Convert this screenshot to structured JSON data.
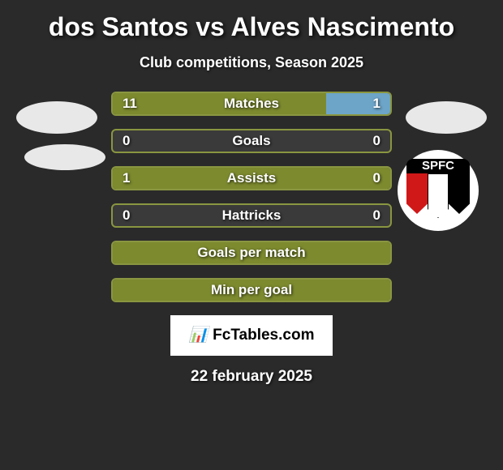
{
  "title": "dos Santos vs Alves Nascimento",
  "subtitle": "Club competitions, Season 2025",
  "footer_logo": "FcTables.com",
  "footer_date": "22 february 2025",
  "club_logo_text": "SPFC",
  "styling": {
    "background_color": "#2a2a2a",
    "text_color": "#ffffff",
    "title_fontsize": 32,
    "subtitle_fontsize": 18,
    "label_fontsize": 17,
    "player_icon_color": "#e8e8e8",
    "club_logo_bg": "#ffffff",
    "club_shield_red": "#d01818",
    "club_shield_black": "#000000",
    "club_shield_white": "#ffffff",
    "footer_logo_bg": "#ffffff",
    "footer_logo_text_color": "#000000"
  },
  "stats": [
    {
      "label": "Matches",
      "left_value": "11",
      "right_value": "1",
      "left_fill_pct": 77,
      "right_fill_pct": 23,
      "left_color": "#7d8a2e",
      "right_color": "#6da5c9",
      "border_color": "#8a9640"
    },
    {
      "label": "Goals",
      "left_value": "0",
      "right_value": "0",
      "left_fill_pct": 0,
      "right_fill_pct": 0,
      "left_color": "#7d8a2e",
      "right_color": "#6da5c9",
      "border_color": "#8a9640"
    },
    {
      "label": "Assists",
      "left_value": "1",
      "right_value": "0",
      "left_fill_pct": 100,
      "right_fill_pct": 0,
      "left_color": "#7d8a2e",
      "right_color": "#6da5c9",
      "border_color": "#8a9640"
    },
    {
      "label": "Hattricks",
      "left_value": "0",
      "right_value": "0",
      "left_fill_pct": 0,
      "right_fill_pct": 0,
      "left_color": "#7d8a2e",
      "right_color": "#6da5c9",
      "border_color": "#8a9640"
    },
    {
      "label": "Goals per match",
      "left_value": "",
      "right_value": "",
      "left_fill_pct": 100,
      "right_fill_pct": 0,
      "left_color": "#7d8a2e",
      "right_color": "#6da5c9",
      "border_color": "#8a9640"
    },
    {
      "label": "Min per goal",
      "left_value": "",
      "right_value": "",
      "left_fill_pct": 100,
      "right_fill_pct": 0,
      "left_color": "#7d8a2e",
      "right_color": "#6da5c9",
      "border_color": "#8a9640"
    }
  ]
}
